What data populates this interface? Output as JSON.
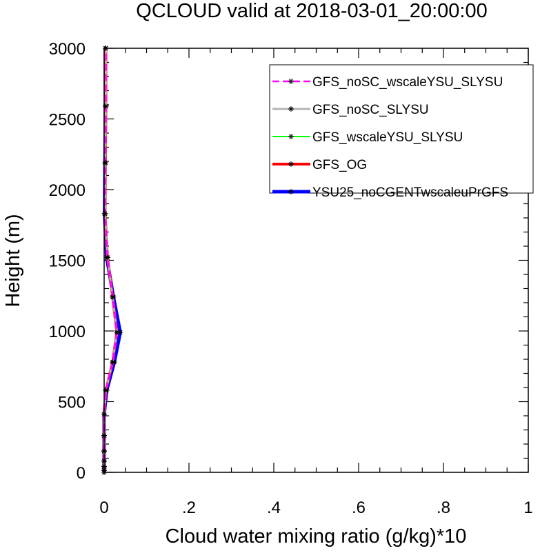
{
  "chart_data": {
    "type": "line",
    "title": "QCLOUD valid at 2018-03-01_20:00:00",
    "xlabel": "Cloud water mixing ratio (g/kg)*10",
    "ylabel": "Height (m)",
    "xlim": [
      0,
      1
    ],
    "ylim": [
      0,
      3000
    ],
    "x_ticks": [
      0,
      0.2,
      0.4,
      0.6,
      0.8,
      1
    ],
    "x_tick_labels": [
      "0",
      ".2",
      ".4",
      ".6",
      ".8",
      "1"
    ],
    "y_ticks": [
      0,
      500,
      1000,
      1500,
      2000,
      2500,
      3000
    ],
    "y_tick_labels": [
      "0",
      "500",
      "1000",
      "1500",
      "2000",
      "2500",
      "3000"
    ],
    "legend_position": "top-right",
    "grid": false,
    "heights": [
      0,
      15,
      40,
      80,
      150,
      260,
      410,
      580,
      780,
      990,
      1240,
      1520,
      1830,
      2190,
      2590,
      3000
    ],
    "series": [
      {
        "name": "GFS_noSC_wscaleYSU_SLYSU",
        "color": "#ff00ff",
        "dash": "dashed",
        "values": [
          0,
          0,
          0,
          0,
          0,
          0,
          0,
          0.004,
          0.02,
          0.03,
          0.02,
          0.008,
          0.002,
          0.003,
          0.004,
          0.004
        ]
      },
      {
        "name": "GFS_noSC_SLYSU",
        "color": "#b4b4b4",
        "dash": "solid",
        "values": [
          0,
          0,
          0,
          0,
          0,
          0,
          0,
          0.004,
          0.02,
          0.03,
          0.02,
          0.008,
          0.002,
          0.003,
          0.004,
          0.004
        ]
      },
      {
        "name": "GFS_wscaleYSU_SLYSU",
        "color": "#00ff00",
        "dash": "solid",
        "values": [
          0,
          0,
          0,
          0,
          0,
          0,
          0,
          0.004,
          0.02,
          0.03,
          0.02,
          0.008,
          0.002,
          0.003,
          0.004,
          0.004
        ]
      },
      {
        "name": "GFS_OG",
        "color": "#ff0000",
        "dash": "solid",
        "values": [
          0,
          0,
          0,
          0,
          0,
          0,
          0,
          0.004,
          0.02,
          0.03,
          0.02,
          0.008,
          0.002,
          0.003,
          0.004,
          0.004
        ]
      },
      {
        "name": "YSU25_noCGENTwscaleuPrGFS",
        "color": "#0000ff",
        "dash": "solid",
        "values": [
          0,
          0,
          0,
          0,
          0,
          0,
          0,
          0.006,
          0.024,
          0.038,
          0.022,
          0.006,
          0.001,
          0.002,
          0.003,
          0.003
        ]
      }
    ]
  }
}
